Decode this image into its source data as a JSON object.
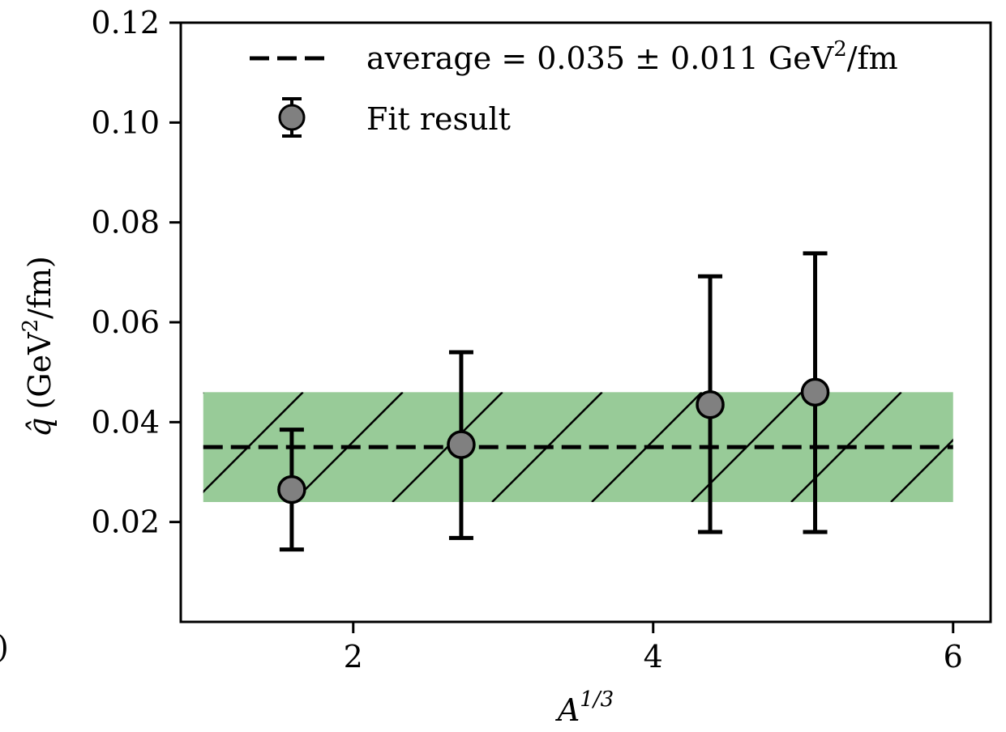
{
  "chart_data": {
    "type": "scatter",
    "title": "",
    "xlabel": {
      "base": "A",
      "sup": "1/3"
    },
    "ylabel": {
      "symbol": "q̂",
      "unit_pre": "(GeV",
      "unit_sup": "2",
      "unit_post": "/fm)"
    },
    "xlim": [
      0.85,
      6.25
    ],
    "ylim": [
      0.0,
      0.12
    ],
    "xticks": [
      2,
      4,
      6
    ],
    "xtick_labels": [
      "2",
      "4",
      "6"
    ],
    "yticks": [
      0.02,
      0.04,
      0.06,
      0.08,
      0.1,
      0.12
    ],
    "ytick_labels": [
      "0.02",
      "0.04",
      "0.06",
      "0.08",
      "0.10",
      "0.12"
    ],
    "grid": false,
    "legend_position": "top-right",
    "series": [
      {
        "name": "Fit result",
        "kind": "errorbar",
        "marker_color": "#808080",
        "points": [
          {
            "x": 1.59,
            "y": 0.0265,
            "ylow": 0.0145,
            "yhigh": 0.0385
          },
          {
            "x": 2.72,
            "y": 0.0355,
            "ylow": 0.0168,
            "yhigh": 0.054
          },
          {
            "x": 4.38,
            "y": 0.0435,
            "ylow": 0.018,
            "yhigh": 0.0692
          },
          {
            "x": 5.08,
            "y": 0.046,
            "ylow": 0.018,
            "yhigh": 0.0738
          }
        ]
      }
    ],
    "average": {
      "legend_pre": "average = 0.035 ± 0.011 GeV",
      "legend_sup": "2",
      "legend_post": "/fm",
      "value": 0.035,
      "uncertainty": 0.011,
      "xrange": [
        1.0,
        6.0
      ],
      "line_style": "dashed",
      "band_color": "#98cb98",
      "hatch": true
    },
    "stray_text": ")"
  }
}
